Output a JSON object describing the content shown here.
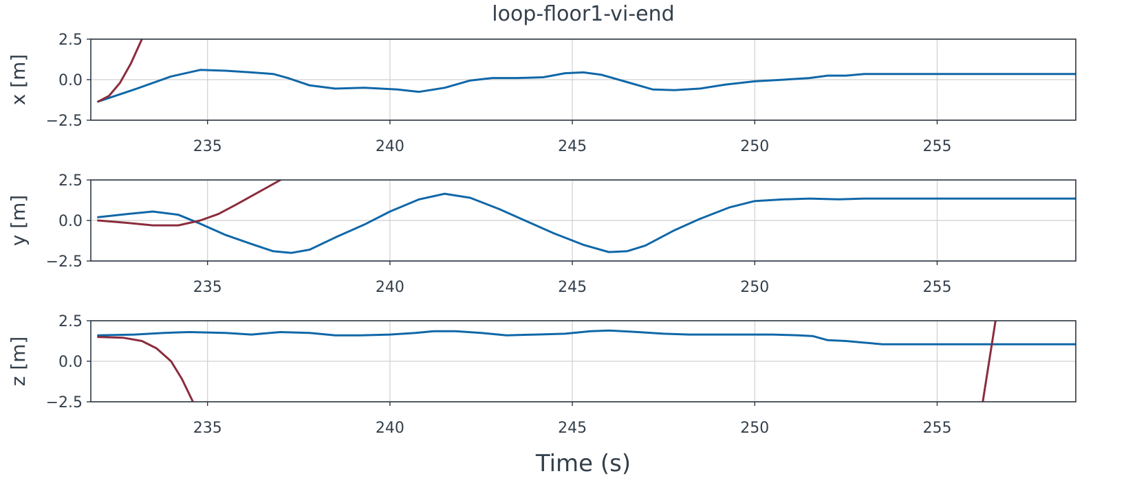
{
  "chart_data": {
    "type": "line",
    "title": "loop-floor1-vi-end",
    "xlabel": "Time (s)",
    "xlim": [
      231.8,
      258.8
    ],
    "xticks": [
      235,
      240,
      245,
      250,
      255
    ],
    "xtick_labels": [
      "235",
      "240",
      "245",
      "250",
      "255"
    ],
    "grid": true,
    "colors": {
      "series_blue": "#0f67a8",
      "series_red": "#8b2c3c",
      "frame": "#2b3540",
      "grid": "#cfcfcf",
      "text": "#333f4b"
    },
    "subplots": [
      {
        "ylabel": "x [m]",
        "ylim": [
          -2.5,
          2.5
        ],
        "yticks": [
          -2.5,
          0.0,
          2.5
        ],
        "ytick_labels": [
          "−2.5",
          "0.0",
          "2.5"
        ],
        "series": [
          {
            "color": "#0f67a8",
            "x": [
              232.0,
              233.0,
              234.0,
              234.8,
              235.5,
              236.2,
              236.8,
              237.2,
              237.8,
              238.5,
              239.3,
              240.2,
              240.8,
              241.5,
              242.2,
              242.8,
              243.5,
              244.2,
              244.8,
              245.3,
              245.8,
              246.5,
              247.2,
              247.8,
              248.5,
              249.2,
              250.0,
              250.8,
              251.5,
              252.0,
              252.5,
              253.0,
              254.0,
              255.0,
              256.0,
              257.0,
              258.8
            ],
            "y": [
              -1.35,
              -0.6,
              0.2,
              0.6,
              0.55,
              0.45,
              0.35,
              0.1,
              -0.35,
              -0.55,
              -0.5,
              -0.6,
              -0.75,
              -0.5,
              -0.05,
              0.1,
              0.1,
              0.15,
              0.4,
              0.45,
              0.3,
              -0.15,
              -0.6,
              -0.65,
              -0.55,
              -0.3,
              -0.1,
              0.0,
              0.1,
              0.25,
              0.25,
              0.35,
              0.35,
              0.35,
              0.35,
              0.35,
              0.35
            ]
          },
          {
            "color": "#8b2c3c",
            "x": [
              232.0,
              232.3,
              232.6,
              232.9,
              233.2
            ],
            "y": [
              -1.35,
              -1.0,
              -0.2,
              1.0,
              2.5
            ]
          }
        ]
      },
      {
        "ylabel": "y [m]",
        "ylim": [
          -2.5,
          2.5
        ],
        "yticks": [
          -2.5,
          0.0,
          2.5
        ],
        "ytick_labels": [
          "−2.5",
          "0.0",
          "2.5"
        ],
        "series": [
          {
            "color": "#0f67a8",
            "x": [
              232.0,
              232.8,
              233.5,
              234.2,
              234.8,
              235.5,
              236.2,
              236.8,
              237.3,
              237.8,
              238.5,
              239.3,
              240.0,
              240.8,
              241.5,
              242.2,
              243.0,
              243.8,
              244.5,
              245.3,
              246.0,
              246.5,
              247.0,
              247.8,
              248.5,
              249.3,
              250.0,
              250.8,
              251.5,
              252.3,
              253.0,
              254.0,
              256.0,
              258.8
            ],
            "y": [
              0.2,
              0.4,
              0.55,
              0.35,
              -0.2,
              -0.9,
              -1.45,
              -1.9,
              -2.0,
              -1.8,
              -1.05,
              -0.25,
              0.55,
              1.3,
              1.65,
              1.4,
              0.7,
              -0.1,
              -0.8,
              -1.5,
              -1.95,
              -1.9,
              -1.55,
              -0.6,
              0.1,
              0.8,
              1.2,
              1.3,
              1.35,
              1.3,
              1.35,
              1.35,
              1.35,
              1.35
            ]
          },
          {
            "color": "#8b2c3c",
            "x": [
              232.0,
              232.8,
              233.5,
              234.2,
              234.8,
              235.3,
              235.8,
              236.4,
              237.0
            ],
            "y": [
              0.0,
              -0.15,
              -0.3,
              -0.3,
              0.0,
              0.4,
              1.0,
              1.75,
              2.5
            ]
          }
        ]
      },
      {
        "ylabel": "z [m]",
        "ylim": [
          -2.5,
          2.5
        ],
        "yticks": [
          -2.5,
          0.0,
          2.5
        ],
        "ytick_labels": [
          "−2.5",
          "0.0",
          "2.5"
        ],
        "series": [
          {
            "color": "#0f67a8",
            "x": [
              232.0,
              233.0,
              233.8,
              234.5,
              235.5,
              236.2,
              237.0,
              237.8,
              238.5,
              239.2,
              240.0,
              240.7,
              241.2,
              241.8,
              242.5,
              243.2,
              244.0,
              244.8,
              245.5,
              246.0,
              246.8,
              247.5,
              248.2,
              249.0,
              249.8,
              250.5,
              251.2,
              251.6,
              252.0,
              252.5,
              253.0,
              253.5,
              254.5,
              256.0,
              258.8
            ],
            "y": [
              1.6,
              1.65,
              1.75,
              1.8,
              1.75,
              1.65,
              1.8,
              1.75,
              1.6,
              1.6,
              1.65,
              1.75,
              1.85,
              1.85,
              1.75,
              1.6,
              1.65,
              1.7,
              1.85,
              1.9,
              1.8,
              1.7,
              1.65,
              1.65,
              1.65,
              1.65,
              1.6,
              1.55,
              1.3,
              1.25,
              1.15,
              1.05,
              1.05,
              1.05,
              1.05
            ]
          },
          {
            "color": "#8b2c3c",
            "x": [
              232.0,
              232.7,
              233.2,
              233.6,
              234.0,
              234.3,
              234.6
            ],
            "y": [
              1.5,
              1.45,
              1.25,
              0.8,
              0.0,
              -1.1,
              -2.5
            ]
          },
          {
            "color": "#8b2c3c",
            "x": [
              256.25,
              256.6
            ],
            "y": [
              -2.5,
              2.5
            ]
          }
        ]
      }
    ]
  }
}
